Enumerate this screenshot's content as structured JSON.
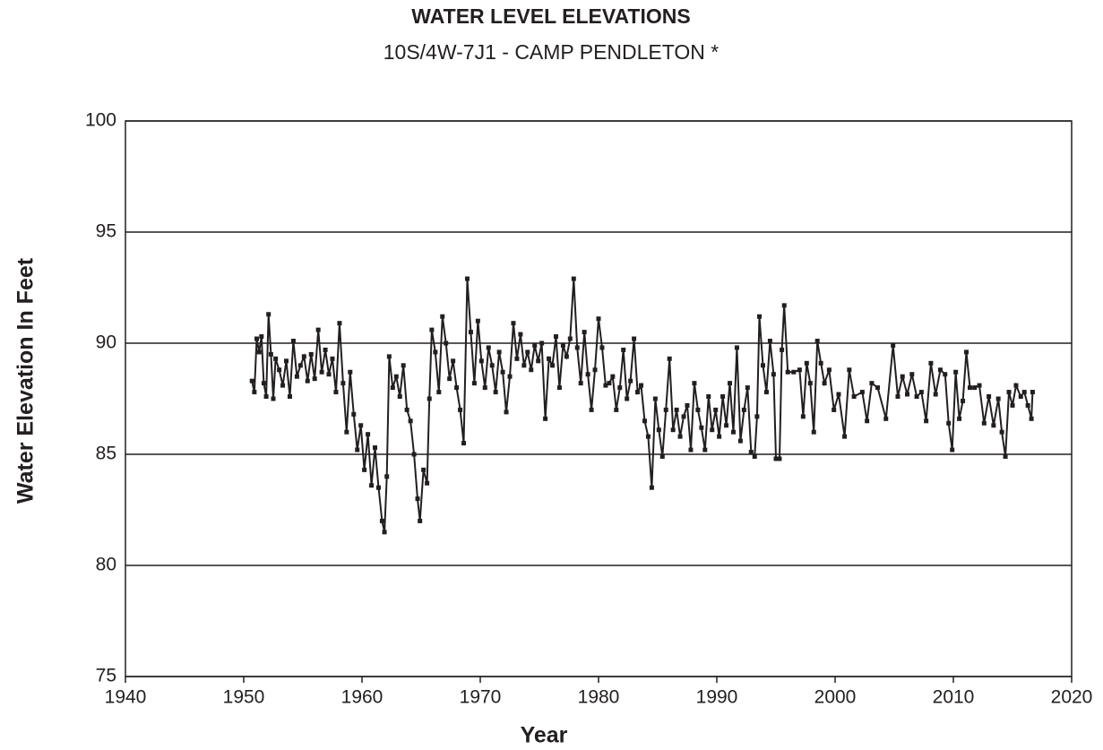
{
  "chart_data": {
    "type": "line",
    "title": "WATER LEVEL ELEVATIONS",
    "subtitle": "10S/4W-7J1 - CAMP PENDLETON *",
    "x_label": "Year",
    "y_label": "Water Elevation In Feet",
    "xlim": [
      1940,
      2020
    ],
    "xticks": [
      1940,
      1950,
      1960,
      1970,
      1980,
      1990,
      2000,
      2010,
      2020
    ],
    "ylim": [
      75,
      100
    ],
    "yticks": [
      75,
      80,
      85,
      90,
      95,
      100
    ],
    "grid": true,
    "x": [
      1950.7,
      1950.9,
      1951.1,
      1951.3,
      1951.5,
      1951.7,
      1951.9,
      1952.1,
      1952.3,
      1952.5,
      1952.7,
      1953.0,
      1953.3,
      1953.6,
      1953.9,
      1954.2,
      1954.5,
      1954.8,
      1955.1,
      1955.4,
      1955.7,
      1956.0,
      1956.3,
      1956.6,
      1956.9,
      1957.2,
      1957.5,
      1957.8,
      1958.1,
      1958.4,
      1958.7,
      1959.0,
      1959.3,
      1959.6,
      1959.9,
      1960.2,
      1960.5,
      1960.8,
      1961.1,
      1961.4,
      1961.7,
      1961.9,
      1962.1,
      1962.3,
      1962.6,
      1962.9,
      1963.2,
      1963.5,
      1963.8,
      1964.1,
      1964.4,
      1964.7,
      1964.9,
      1965.2,
      1965.5,
      1965.7,
      1965.9,
      1966.2,
      1966.5,
      1966.8,
      1967.1,
      1967.4,
      1967.7,
      1968.0,
      1968.3,
      1968.6,
      1968.9,
      1969.2,
      1969.5,
      1969.8,
      1970.1,
      1970.4,
      1970.7,
      1971.0,
      1971.3,
      1971.6,
      1971.9,
      1972.2,
      1972.5,
      1972.8,
      1973.1,
      1973.4,
      1973.7,
      1974.0,
      1974.3,
      1974.6,
      1974.9,
      1975.2,
      1975.5,
      1975.8,
      1976.1,
      1976.4,
      1976.7,
      1977.0,
      1977.3,
      1977.6,
      1977.9,
      1978.2,
      1978.5,
      1978.8,
      1979.1,
      1979.4,
      1979.7,
      1980.0,
      1980.3,
      1980.6,
      1980.9,
      1981.2,
      1981.5,
      1981.8,
      1982.1,
      1982.4,
      1982.7,
      1983.0,
      1983.3,
      1983.6,
      1983.9,
      1984.2,
      1984.5,
      1984.8,
      1985.1,
      1985.4,
      1985.7,
      1986.0,
      1986.3,
      1986.6,
      1986.9,
      1987.2,
      1987.5,
      1987.8,
      1988.1,
      1988.4,
      1988.7,
      1989.0,
      1989.3,
      1989.6,
      1989.9,
      1990.2,
      1990.5,
      1990.8,
      1991.1,
      1991.4,
      1991.7,
      1992.0,
      1992.3,
      1992.6,
      1992.9,
      1993.2,
      1993.4,
      1993.6,
      1993.9,
      1994.2,
      1994.5,
      1994.8,
      1995.0,
      1995.3,
      1995.5,
      1995.7,
      1996.0,
      1996.5,
      1997.0,
      1997.3,
      1997.6,
      1997.9,
      1998.2,
      1998.5,
      1998.8,
      1999.1,
      1999.5,
      1999.9,
      2000.3,
      2000.8,
      2001.2,
      2001.6,
      2002.3,
      2002.7,
      2003.1,
      2003.6,
      2004.3,
      2004.9,
      2005.3,
      2005.7,
      2006.1,
      2006.5,
      2006.9,
      2007.3,
      2007.7,
      2008.1,
      2008.5,
      2008.9,
      2009.3,
      2009.6,
      2009.9,
      2010.2,
      2010.5,
      2010.8,
      2011.1,
      2011.4,
      2011.8,
      2012.2,
      2012.6,
      2013.0,
      2013.4,
      2013.8,
      2014.1,
      2014.4,
      2014.7,
      2015.0,
      2015.3,
      2015.7,
      2016.0,
      2016.3,
      2016.6,
      2016.7
    ],
    "series": [
      {
        "color": "#231f20",
        "values": [
          88.3,
          87.8,
          90.2,
          89.6,
          90.3,
          88.2,
          87.6,
          91.3,
          89.5,
          87.5,
          89.3,
          88.8,
          88.1,
          89.2,
          87.6,
          90.1,
          88.5,
          89.0,
          89.4,
          88.3,
          89.5,
          88.4,
          90.6,
          88.7,
          89.7,
          88.6,
          89.3,
          87.8,
          90.9,
          88.2,
          86.0,
          88.7,
          86.8,
          85.2,
          86.3,
          84.3,
          85.9,
          83.6,
          85.3,
          83.5,
          82.0,
          81.5,
          84.0,
          89.4,
          88.0,
          88.5,
          87.6,
          89.0,
          87.0,
          86.5,
          85.0,
          83.0,
          82.0,
          84.3,
          83.7,
          87.5,
          90.6,
          89.6,
          87.8,
          91.2,
          90.0,
          88.4,
          89.2,
          88.0,
          87.0,
          85.5,
          92.9,
          90.5,
          88.2,
          91.0,
          89.2,
          88.0,
          89.8,
          89.0,
          87.8,
          89.6,
          88.7,
          86.9,
          88.5,
          90.9,
          89.3,
          90.4,
          89.0,
          89.6,
          88.8,
          89.9,
          89.2,
          90.0,
          86.6,
          89.3,
          89.0,
          90.3,
          88.0,
          89.9,
          89.4,
          90.2,
          92.9,
          89.8,
          88.2,
          90.5,
          88.6,
          87.0,
          88.8,
          91.1,
          89.8,
          88.1,
          88.2,
          88.5,
          87.0,
          88.0,
          89.7,
          87.5,
          88.3,
          90.2,
          87.8,
          88.1,
          86.5,
          85.8,
          83.5,
          87.5,
          86.1,
          84.9,
          87.0,
          89.3,
          86.1,
          87.0,
          85.8,
          86.7,
          87.2,
          85.2,
          88.2,
          87.0,
          86.2,
          85.2,
          87.6,
          86.1,
          87.0,
          85.8,
          87.6,
          86.3,
          88.2,
          86.0,
          89.8,
          85.6,
          87.0,
          88.0,
          85.1,
          84.9,
          86.7,
          91.2,
          89.0,
          87.8,
          90.1,
          88.6,
          84.8,
          84.8,
          89.7,
          91.7,
          88.7,
          88.7,
          88.8,
          86.7,
          89.1,
          88.2,
          86.0,
          90.1,
          89.1,
          88.2,
          88.8,
          87.0,
          87.7,
          85.8,
          88.8,
          87.6,
          87.8,
          86.5,
          88.2,
          88.0,
          86.6,
          89.9,
          87.6,
          88.5,
          87.7,
          88.6,
          87.6,
          87.8,
          86.5,
          89.1,
          87.7,
          88.8,
          88.6,
          86.4,
          85.2,
          88.7,
          86.6,
          87.4,
          89.6,
          88.0,
          88.0,
          88.1,
          86.4,
          87.6,
          86.3,
          87.5,
          86.0,
          84.9,
          87.8,
          87.2,
          88.1,
          87.6,
          87.8,
          87.2,
          86.6,
          87.8
        ]
      }
    ]
  }
}
